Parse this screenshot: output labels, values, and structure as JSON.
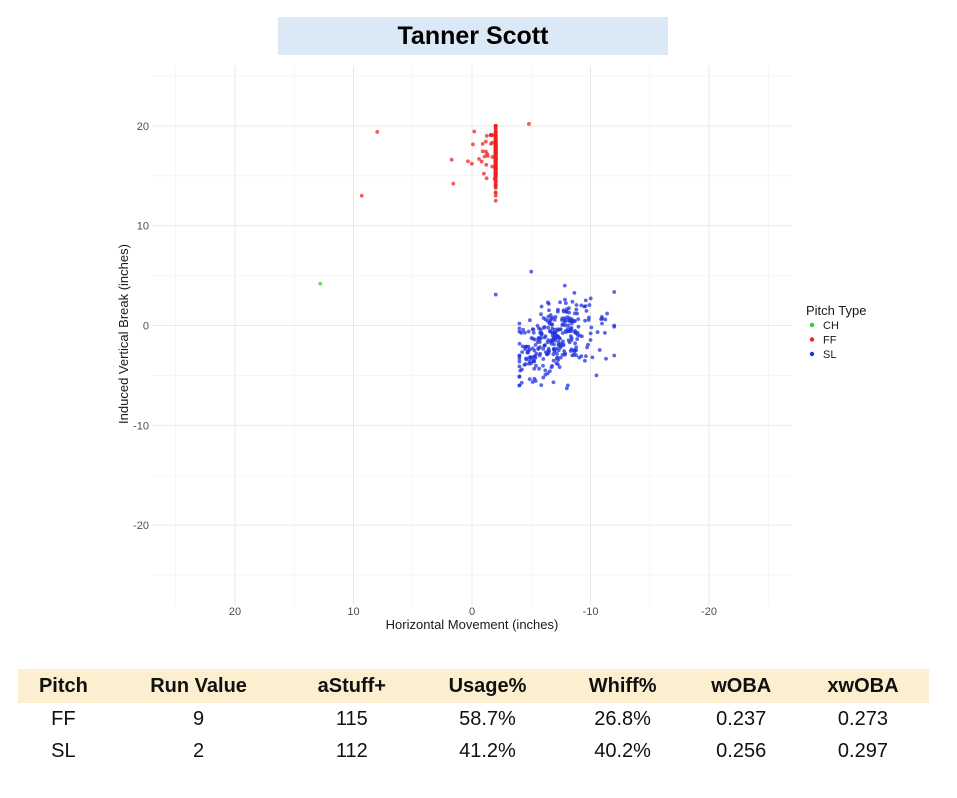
{
  "title": "Tanner Scott",
  "chart_data": {
    "type": "scatter",
    "title": "Tanner Scott",
    "xlabel": "Horizontal Movement (inches)",
    "ylabel": "Induced Vertical Break (inches)",
    "xlim": [
      27,
      -27
    ],
    "ylim": [
      -28,
      26
    ],
    "xticks": [
      20,
      10,
      0,
      -10,
      -20
    ],
    "yticks": [
      20,
      10,
      0,
      -10,
      -20
    ],
    "grid": true,
    "legend": {
      "title": "Pitch Type",
      "position": "right"
    },
    "series": [
      {
        "name": "CH",
        "color": "#33cc33",
        "points": [
          [
            12.8,
            4.2
          ]
        ]
      },
      {
        "name": "FF",
        "color": "#ee2222",
        "center": [
          -5.5,
          17
        ],
        "count": 300,
        "points": [
          [
            9.3,
            13
          ],
          [
            -2.0,
            12.5
          ],
          [
            -1.9,
            14.7
          ],
          [
            -4.8,
            20.2
          ],
          [
            8.0,
            19.4
          ],
          [
            -1.2,
            16.1
          ]
        ]
      },
      {
        "name": "SL",
        "color": "#2233dd",
        "center": [
          -7,
          -1.5
        ],
        "count": 300,
        "points": [
          [
            -5.0,
            5.4
          ],
          [
            -2.0,
            3.1
          ],
          [
            -12.0,
            0.0
          ],
          [
            -12.0,
            -3.0
          ],
          [
            -10.5,
            -5.0
          ],
          [
            -8.0,
            -6.3
          ],
          [
            -4.0,
            0.2
          ]
        ]
      }
    ]
  },
  "table": {
    "headers": [
      "Pitch",
      "Run Value",
      "aStuff+",
      "Usage%",
      "Whiff%",
      "wOBA",
      "xwOBA"
    ],
    "rows": [
      [
        "FF",
        "9",
        "115",
        "58.7%",
        "26.8%",
        "0.237",
        "0.273"
      ],
      [
        "SL",
        "2",
        "112",
        "41.2%",
        "40.2%",
        "0.256",
        "0.297"
      ]
    ]
  }
}
